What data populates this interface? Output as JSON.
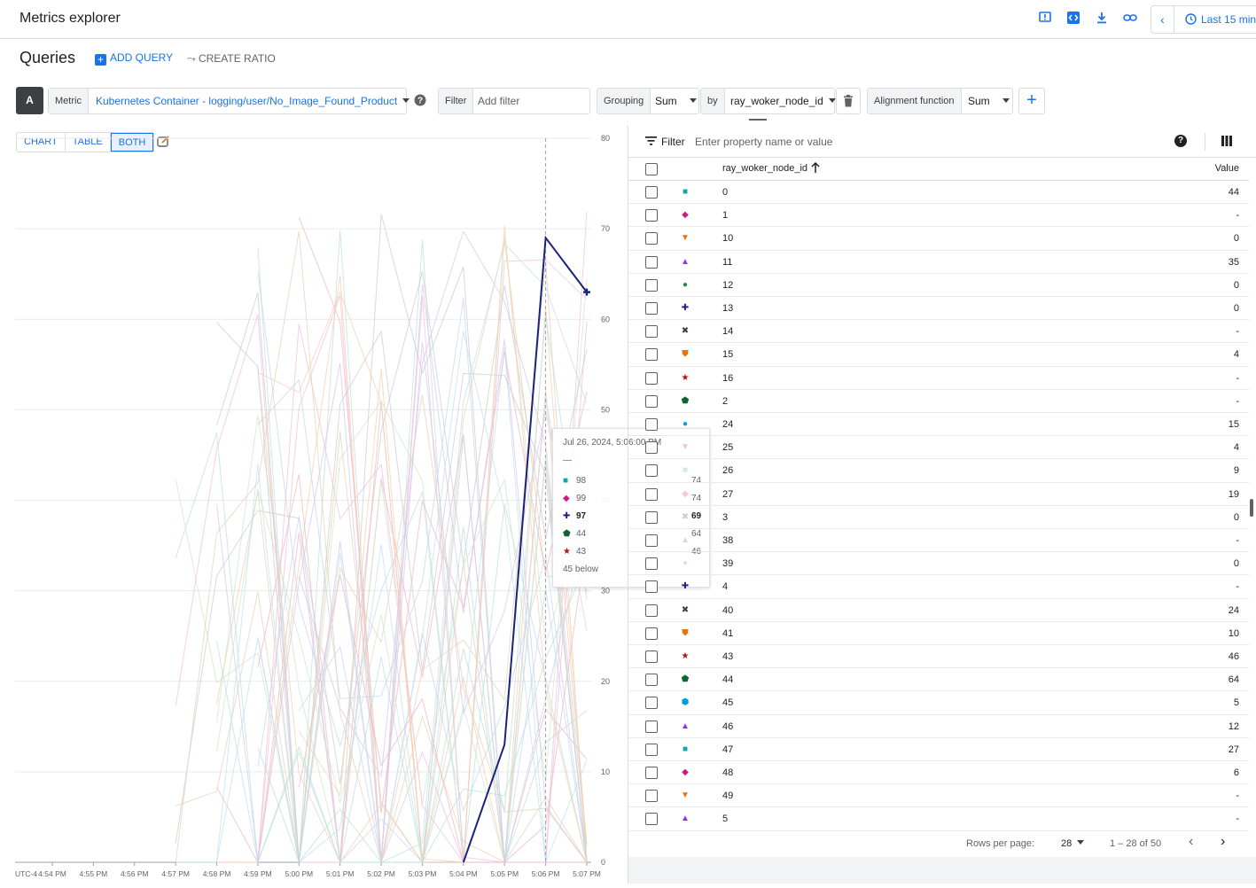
{
  "header": {
    "title": "Metrics explorer",
    "time_range_label": "Last 15 min"
  },
  "queries": {
    "title": "Queries",
    "add_query": "ADD QUERY",
    "create_ratio": "CREATE RATIO",
    "badge": "A",
    "metric_key": "Metric",
    "metric_value": "Kubernetes Container - logging/user/No_Image_Found_Product",
    "filter_key": "Filter",
    "filter_placeholder": "Add filter",
    "grouping_key": "Grouping",
    "grouping_value": "Sum",
    "by_key": "by",
    "by_value": "ray_woker_node_id",
    "alignment_key": "Alignment function",
    "alignment_value": "Sum"
  },
  "view_toggle": {
    "chart": "CHART",
    "table": "TABLE",
    "both": "BOTH",
    "selected": "BOTH"
  },
  "chart_data": {
    "type": "line",
    "timezone": "UTC-4",
    "x": [
      "4:54 PM",
      "4:55 PM",
      "4:56 PM",
      "4:57 PM",
      "4:58 PM",
      "4:59 PM",
      "5:00 PM",
      "5:01 PM",
      "5:02 PM",
      "5:03 PM",
      "5:04 PM",
      "5:05 PM",
      "5:06 PM",
      "5:07 PM"
    ],
    "y_ticks": [
      0,
      10,
      20,
      30,
      40,
      50,
      60,
      70,
      80
    ],
    "ylim": [
      0,
      80
    ],
    "highlighted_series": {
      "name": "97",
      "color": "#1a237e",
      "values": [
        null,
        null,
        null,
        null,
        null,
        null,
        null,
        null,
        null,
        null,
        0,
        13,
        69,
        63
      ]
    }
  },
  "tooltip": {
    "datetime": "Jul 26, 2024, 5:06:00 PM",
    "dash": "—",
    "rows": [
      {
        "name": "98",
        "value": "74",
        "marker": "■",
        "color": "#12a4af",
        "highlight": false
      },
      {
        "name": "99",
        "value": "74",
        "marker": "◆",
        "color": "#d01884",
        "highlight": false
      },
      {
        "name": "97",
        "value": "69",
        "marker": "✚",
        "color": "#1a237e",
        "highlight": true
      },
      {
        "name": "44",
        "value": "64",
        "marker": "⬟",
        "color": "#0d652d",
        "highlight": false
      },
      {
        "name": "43",
        "value": "46",
        "marker": "★",
        "color": "#b31412",
        "highlight": false
      }
    ],
    "below": "45 below"
  },
  "table": {
    "filter_label": "Filter",
    "filter_placeholder": "Enter property name or value",
    "help_glyph": "?",
    "col_id": "ray_woker_node_id",
    "col_value": "Value",
    "rows": [
      {
        "id": "0",
        "value": "44",
        "marker": "■",
        "color": "#12a4af"
      },
      {
        "id": "1",
        "value": "-",
        "marker": "◆",
        "color": "#d01884"
      },
      {
        "id": "10",
        "value": "0",
        "marker": "▼",
        "color": "#e8710a"
      },
      {
        "id": "11",
        "value": "35",
        "marker": "▲",
        "color": "#9334e6"
      },
      {
        "id": "12",
        "value": "0",
        "marker": "●",
        "color": "#1e8e3e"
      },
      {
        "id": "13",
        "value": "0",
        "marker": "✚",
        "color": "#1a237e"
      },
      {
        "id": "14",
        "value": "-",
        "marker": "✖",
        "color": "#3c4043"
      },
      {
        "id": "15",
        "value": "4",
        "marker": "⛊",
        "color": "#e8710a"
      },
      {
        "id": "16",
        "value": "-",
        "marker": "★",
        "color": "#b31412"
      },
      {
        "id": "2",
        "value": "-",
        "marker": "⬟",
        "color": "#0d652d"
      },
      {
        "id": "24",
        "value": "15",
        "marker": "●",
        "color": "#039be5"
      },
      {
        "id": "25",
        "value": "4",
        "marker": "▼",
        "color": "#f6c6c6"
      },
      {
        "id": "26",
        "value": "9",
        "marker": "■",
        "color": "#c8ece3"
      },
      {
        "id": "27",
        "value": "19",
        "marker": "◆",
        "color": "#f6c6df"
      },
      {
        "id": "3",
        "value": "0",
        "marker": "✖",
        "color": "#cccccc"
      },
      {
        "id": "38",
        "value": "-",
        "marker": "▲",
        "color": "#dcd0f3"
      },
      {
        "id": "39",
        "value": "0",
        "marker": "●",
        "color": "#cdebd5"
      },
      {
        "id": "4",
        "value": "-",
        "marker": "✚",
        "color": "#1a237e"
      },
      {
        "id": "40",
        "value": "24",
        "marker": "✖",
        "color": "#3c4043"
      },
      {
        "id": "41",
        "value": "10",
        "marker": "⛊",
        "color": "#e8710a"
      },
      {
        "id": "43",
        "value": "46",
        "marker": "★",
        "color": "#b31412"
      },
      {
        "id": "44",
        "value": "64",
        "marker": "⬟",
        "color": "#0d652d"
      },
      {
        "id": "45",
        "value": "5",
        "marker": "⬢",
        "color": "#039be5"
      },
      {
        "id": "46",
        "value": "12",
        "marker": "▲",
        "color": "#9334e6"
      },
      {
        "id": "47",
        "value": "27",
        "marker": "■",
        "color": "#12a4af"
      },
      {
        "id": "48",
        "value": "6",
        "marker": "◆",
        "color": "#d01884"
      },
      {
        "id": "49",
        "value": "-",
        "marker": "▼",
        "color": "#e8710a"
      },
      {
        "id": "5",
        "value": "-",
        "marker": "▲",
        "color": "#9334e6"
      }
    ],
    "rows_per_page_label": "Rows per page:",
    "rows_per_page_value": "28",
    "range_label": "1 – 28 of 50"
  }
}
